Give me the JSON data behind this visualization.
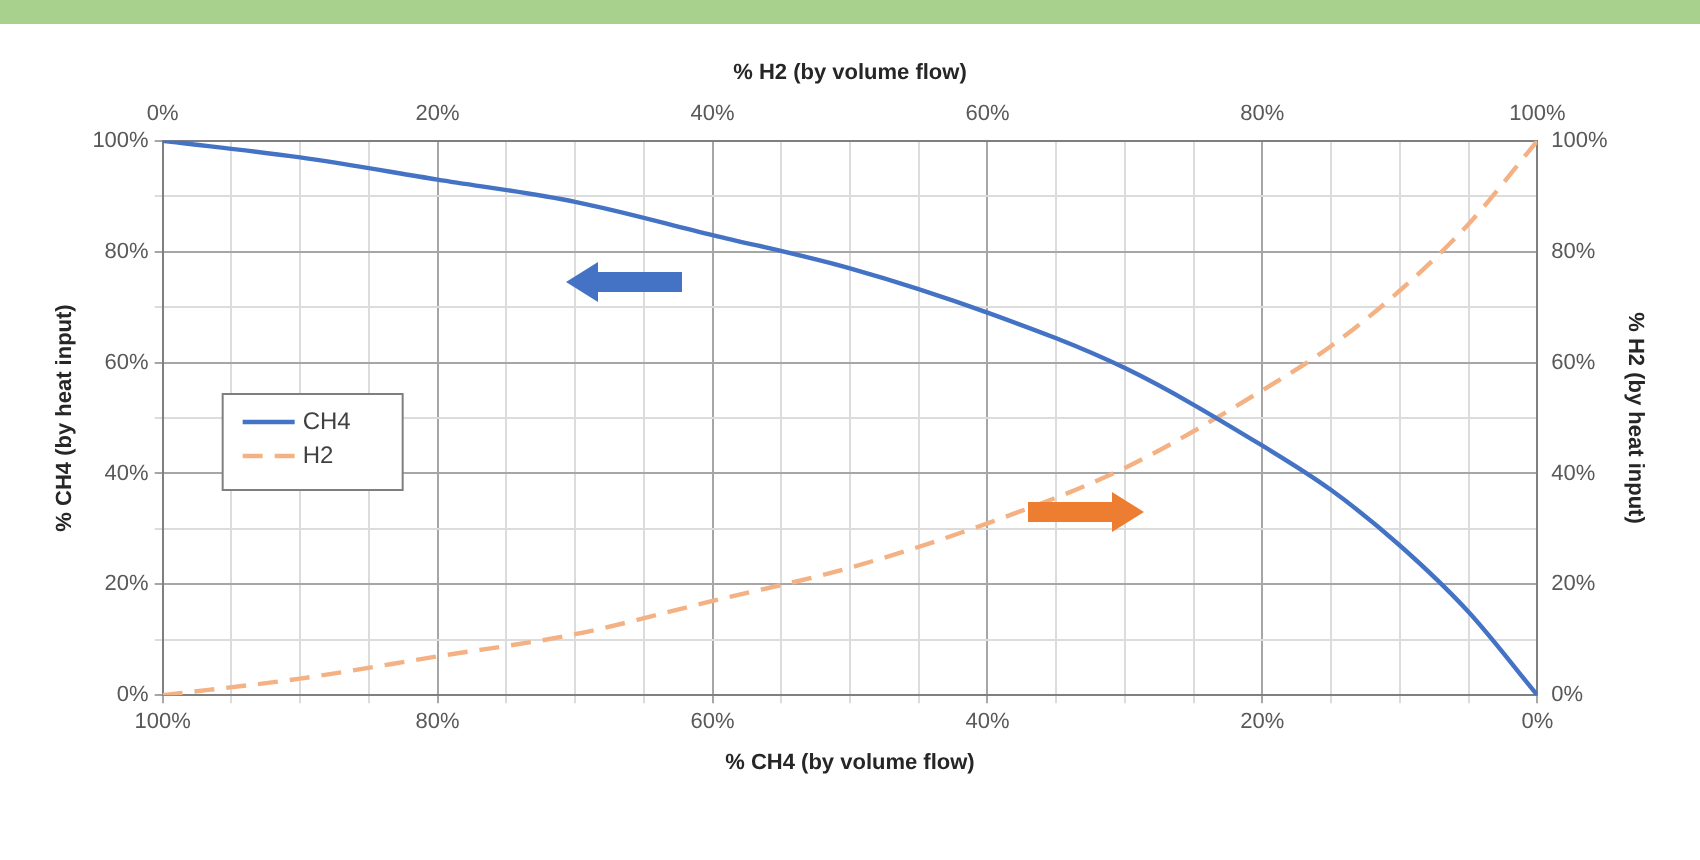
{
  "chart_data": {
    "type": "line",
    "xlabel": "% CH4 (by volume flow)",
    "x2label": "% H2 (by volume flow)",
    "ylabel": "% CH4 (by heat input)",
    "y2label": "% H2 (by heat input)",
    "xlim": [
      100,
      0
    ],
    "xticks": [
      {
        "value": 100,
        "label": "100%"
      },
      {
        "value": 95,
        "label": null
      },
      {
        "value": 90,
        "label": null
      },
      {
        "value": 85,
        "label": null
      },
      {
        "value": 80,
        "label": "80%"
      },
      {
        "value": 75,
        "label": null
      },
      {
        "value": 70,
        "label": null
      },
      {
        "value": 65,
        "label": null
      },
      {
        "value": 60,
        "label": "60%"
      },
      {
        "value": 55,
        "label": null
      },
      {
        "value": 50,
        "label": null
      },
      {
        "value": 45,
        "label": null
      },
      {
        "value": 40,
        "label": "40%"
      },
      {
        "value": 35,
        "label": null
      },
      {
        "value": 30,
        "label": null
      },
      {
        "value": 25,
        "label": null
      },
      {
        "value": 20,
        "label": "20%"
      },
      {
        "value": 15,
        "label": null
      },
      {
        "value": 10,
        "label": null
      },
      {
        "value": 5,
        "label": null
      },
      {
        "value": 0,
        "label": "0%"
      }
    ],
    "x2lim": [
      0,
      100
    ],
    "x2ticks": [
      {
        "value": 0,
        "label": "0%"
      },
      {
        "value": 20,
        "label": "20%"
      },
      {
        "value": 40,
        "label": "40%"
      },
      {
        "value": 60,
        "label": "60%"
      },
      {
        "value": 80,
        "label": "80%"
      },
      {
        "value": 100,
        "label": "100%"
      }
    ],
    "ylim": [
      0,
      100
    ],
    "yticks": [
      {
        "value": 0,
        "label": "0%"
      },
      {
        "value": 10,
        "label": null
      },
      {
        "value": 20,
        "label": "20%"
      },
      {
        "value": 30,
        "label": null
      },
      {
        "value": 40,
        "label": "40%"
      },
      {
        "value": 50,
        "label": null
      },
      {
        "value": 60,
        "label": "60%"
      },
      {
        "value": 70,
        "label": null
      },
      {
        "value": 80,
        "label": "80%"
      },
      {
        "value": 90,
        "label": null
      },
      {
        "value": 100,
        "label": "100%"
      }
    ],
    "y2lim": [
      0,
      100
    ],
    "y2ticks": [
      {
        "value": 0,
        "label": "0%"
      },
      {
        "value": 20,
        "label": "20%"
      },
      {
        "value": 40,
        "label": "40%"
      },
      {
        "value": 60,
        "label": "60%"
      },
      {
        "value": 80,
        "label": "80%"
      },
      {
        "value": 100,
        "label": "100%"
      }
    ],
    "x": [
      100,
      90,
      80,
      70,
      60,
      50,
      40,
      30,
      20,
      15,
      10,
      5,
      0
    ],
    "series": [
      {
        "name": "CH4",
        "color": "#4472c4",
        "line_style": "solid",
        "values": [
          100,
          97,
          93,
          89,
          83,
          77,
          69,
          59,
          45,
          37,
          27,
          15,
          0
        ]
      },
      {
        "name": "H2",
        "color": "#f4b183",
        "line_style": "dashed",
        "axis": "y2",
        "values": [
          0,
          3,
          7,
          11,
          17,
          23,
          31,
          41,
          55,
          63,
          73,
          85,
          100
        ]
      }
    ],
    "grid": true,
    "legend": "left",
    "marker": "none"
  }
}
